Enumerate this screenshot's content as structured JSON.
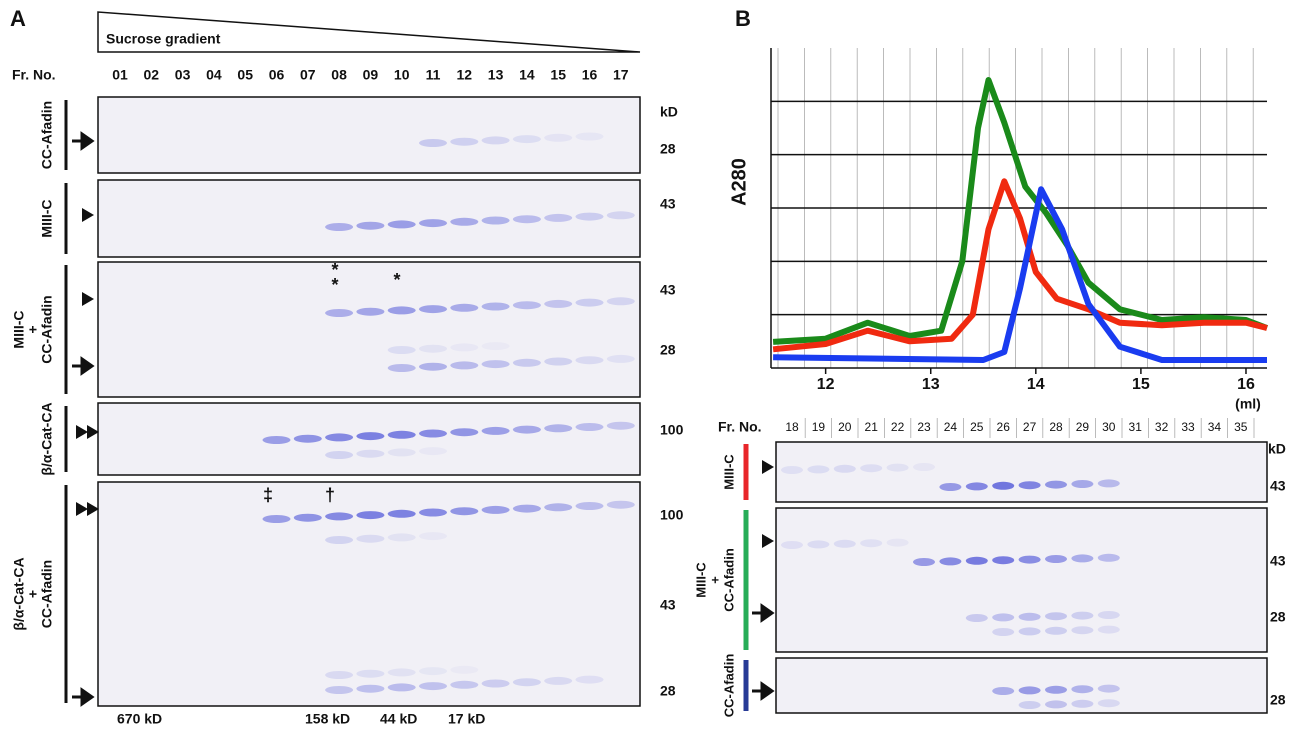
{
  "panel_a": {
    "label": "A",
    "gradient_label": "Sucrose gradient",
    "fraction_header": "Fr. No.",
    "fractions": [
      "01",
      "02",
      "03",
      "04",
      "05",
      "06",
      "07",
      "08",
      "09",
      "10",
      "11",
      "12",
      "13",
      "14",
      "15",
      "16",
      "17"
    ],
    "mw_unit": "kD",
    "gels": [
      {
        "name_lines": [
          "CC-Afadin"
        ],
        "markers": [
          "28"
        ]
      },
      {
        "name_lines": [
          "MIII-C"
        ],
        "markers": [
          "43"
        ]
      },
      {
        "name_lines": [
          "MIII-C",
          "+",
          "CC-Afadin"
        ],
        "markers": [
          "43",
          "28"
        ]
      },
      {
        "name_lines": [
          "β/α-Cat-CA"
        ],
        "markers": [
          "100"
        ]
      },
      {
        "name_lines": [
          "β/α-Cat-CA",
          "+",
          "CC-Afadin"
        ],
        "markers": [
          "100",
          "43",
          "28"
        ]
      }
    ],
    "annotations": [
      "*",
      "*",
      "*",
      "‡",
      "†"
    ],
    "standards": [
      "670 kD",
      "158 kD",
      "44 kD",
      "17 kD"
    ]
  },
  "chart_data": {
    "type": "line",
    "label": "B",
    "y_label": "A280",
    "x_unit": "(ml)",
    "xlim": [
      11.48,
      16.2
    ],
    "xticks": [
      12,
      13,
      14,
      15,
      16
    ],
    "ylim": [
      0,
      6
    ],
    "yticks": [
      1,
      2,
      3,
      4,
      5
    ],
    "grid": true,
    "series": [
      {
        "color": "#1a8a1a",
        "x": [
          11.5,
          12.0,
          12.4,
          12.8,
          13.1,
          13.3,
          13.45,
          13.55,
          13.7,
          13.9,
          14.1,
          14.3,
          14.5,
          14.8,
          15.2,
          15.6,
          16.0,
          16.2
        ],
        "values": [
          0.49,
          0.55,
          0.85,
          0.6,
          0.7,
          2.0,
          4.5,
          5.4,
          4.6,
          3.4,
          2.9,
          2.3,
          1.6,
          1.1,
          0.9,
          0.95,
          0.9,
          0.75
        ]
      },
      {
        "color": "#f02a10",
        "x": [
          11.5,
          12.0,
          12.4,
          12.8,
          13.2,
          13.4,
          13.55,
          13.7,
          13.85,
          14.0,
          14.2,
          14.5,
          14.8,
          15.2,
          15.6,
          16.0,
          16.2
        ],
        "values": [
          0.35,
          0.45,
          0.7,
          0.5,
          0.55,
          1.0,
          2.6,
          3.5,
          2.8,
          1.8,
          1.3,
          1.1,
          0.85,
          0.8,
          0.85,
          0.85,
          0.75
        ]
      },
      {
        "color": "#1a3cf0",
        "x": [
          11.5,
          13.5,
          13.7,
          13.85,
          14.05,
          14.25,
          14.5,
          14.8,
          15.2,
          16.2
        ],
        "values": [
          0.2,
          0.15,
          0.3,
          1.5,
          3.35,
          2.6,
          1.2,
          0.4,
          0.15,
          0.15
        ]
      }
    ]
  },
  "panel_b": {
    "fraction_header": "Fr. No.",
    "fractions": [
      "18",
      "19",
      "20",
      "21",
      "22",
      "23",
      "24",
      "25",
      "26",
      "27",
      "28",
      "29",
      "30",
      "31",
      "32",
      "33",
      "34",
      "35"
    ],
    "mw_unit": "kD",
    "gels": [
      {
        "name_lines": [
          "MIII-C"
        ],
        "markers": [
          "43"
        ]
      },
      {
        "name_lines": [
          "MIII-C",
          "+",
          "CC-Afadin"
        ],
        "markers": [
          "43",
          "28"
        ]
      },
      {
        "name_lines": [
          "CC-Afadin"
        ],
        "markers": [
          "28"
        ]
      }
    ]
  }
}
